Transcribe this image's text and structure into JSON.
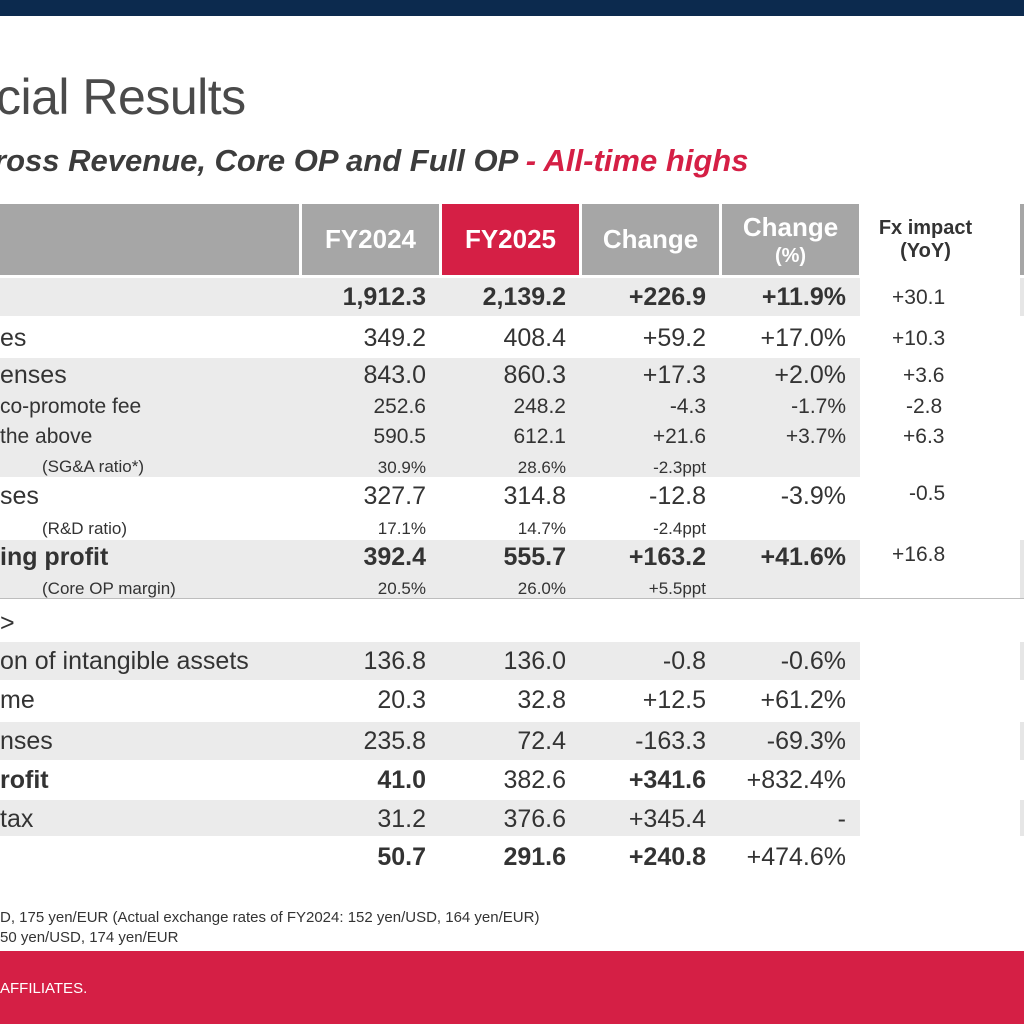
{
  "header": {
    "title": "cial Results",
    "subtitle_main": "ross Revenue, Core OP and Full OP",
    "subtitle_highlight": " - All-time highs"
  },
  "table": {
    "columns": {
      "fy2024": "FY2024",
      "fy2025": "FY2025",
      "change": "Change",
      "change_pct_line1": "Change",
      "change_pct_line2": "(%)",
      "fx_line1": "Fx impact",
      "fx_line2": "(YoY)"
    },
    "rows": [
      {
        "label": "",
        "fy2024": "1,912.3",
        "fy2025": "2,139.2",
        "change": "+226.9",
        "pct": "+11.9%",
        "fx": "+30.1"
      },
      {
        "label": "es",
        "fy2024": "349.2",
        "fy2025": "408.4",
        "change": "+59.2",
        "pct": "+17.0%",
        "fx": "+10.3"
      },
      {
        "label": "enses",
        "fy2024": "843.0",
        "fy2025": "860.3",
        "change": "+17.3",
        "pct": "+2.0%",
        "fx": "+3.6"
      },
      {
        "label": "co-promote fee",
        "fy2024": "252.6",
        "fy2025": "248.2",
        "change": "-4.3",
        "pct": "-1.7%",
        "fx": "-2.8"
      },
      {
        "label": "the above",
        "fy2024": "590.5",
        "fy2025": "612.1",
        "change": "+21.6",
        "pct": "+3.7%",
        "fx": "+6.3"
      },
      {
        "label": "(SG&A ratio*)",
        "fy2024": "30.9%",
        "fy2025": "28.6%",
        "change": "-2.3ppt"
      },
      {
        "label": "ses",
        "fy2024": "327.7",
        "fy2025": "314.8",
        "change": "-12.8",
        "pct": "-3.9%",
        "fx": "-0.5"
      },
      {
        "label": "(R&D ratio)",
        "fy2024": "17.1%",
        "fy2025": "14.7%",
        "change": "-2.4ppt"
      },
      {
        "label": "ing profit",
        "fy2024": "392.4",
        "fy2025": "555.7",
        "change": "+163.2",
        "pct": "+41.6%",
        "fx": "+16.8"
      },
      {
        "label": "(Core OP margin)",
        "fy2024": "20.5%",
        "fy2025": "26.0%",
        "change": "+5.5ppt"
      },
      {
        "label": ">"
      },
      {
        "label": "on of intangible assets",
        "fy2024": "136.8",
        "fy2025": "136.0",
        "change": "-0.8",
        "pct": "-0.6%"
      },
      {
        "label": "me",
        "fy2024": "20.3",
        "fy2025": "32.8",
        "change": "+12.5",
        "pct": "+61.2%"
      },
      {
        "label": "nses",
        "fy2024": "235.8",
        "fy2025": "72.4",
        "change": "-163.3",
        "pct": "-69.3%"
      },
      {
        "label": "rofit",
        "fy2024": "41.0",
        "fy2025": "382.6",
        "change": "+341.6",
        "pct": "+832.4%"
      },
      {
        "label": "tax",
        "fy2024": "31.2",
        "fy2025": "376.6",
        "change": "+345.4",
        "pct": "-"
      },
      {
        "label": "",
        "fy2024": "50.7",
        "fy2025": "291.6",
        "change": "+240.8",
        "pct": "+474.6%"
      }
    ]
  },
  "footnotes": {
    "line1": "D, 175 yen/EUR (Actual exchange rates of FY2024: 152 yen/USD, 164 yen/EUR)",
    "line2": "50 yen/USD, 174 yen/EUR"
  },
  "footer": {
    "text": "AFFILIATES."
  },
  "colors": {
    "top_bar": "#0c2a4e",
    "accent_red": "#d51f45",
    "header_gray": "#a6a6a6",
    "band_gray": "#ebebeb"
  }
}
